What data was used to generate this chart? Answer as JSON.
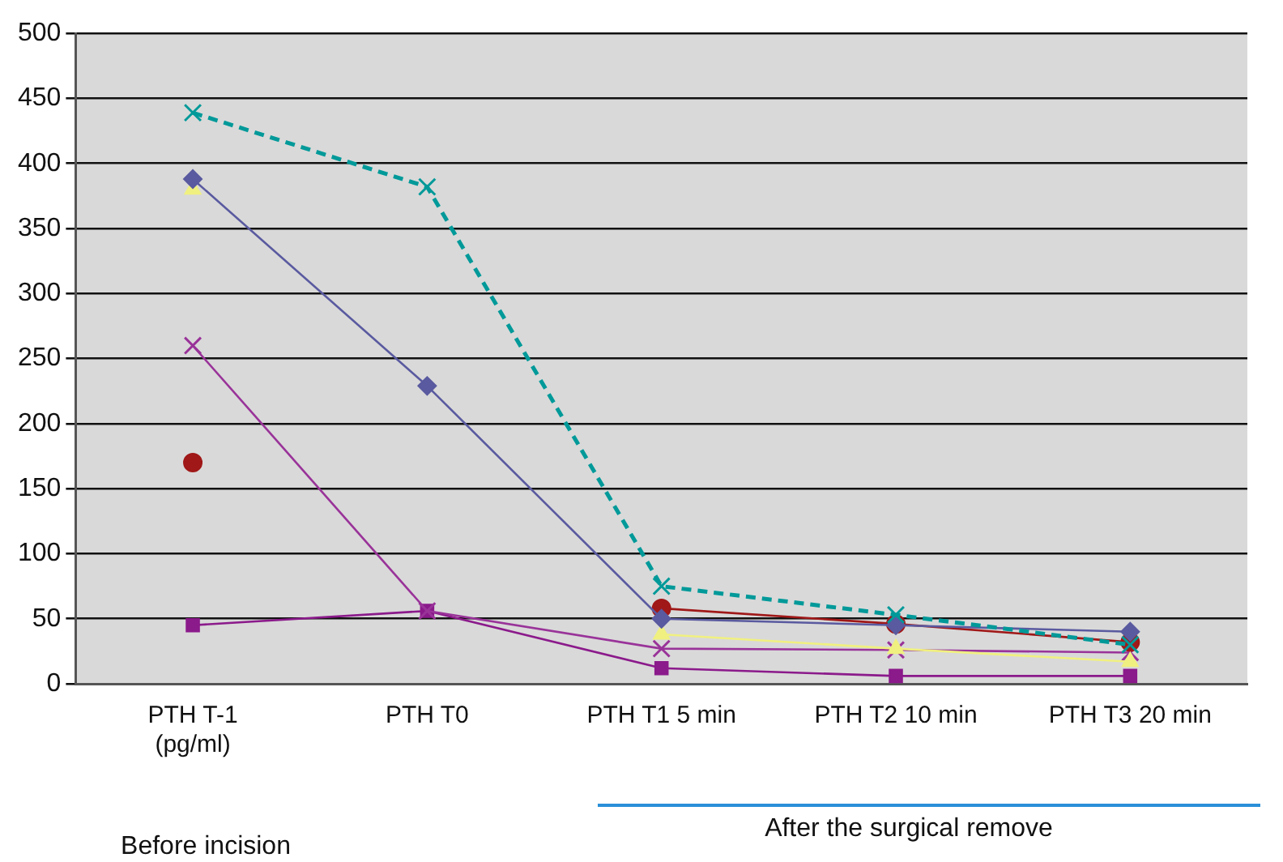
{
  "chart_data": {
    "type": "line",
    "categories": [
      "PTH T-1\n(pg/ml)",
      "PTH T0",
      "PTH T1 5 min",
      "PTH T2 10 min",
      "PTH T3 20 min"
    ],
    "series": [
      {
        "color": "#009999",
        "marker": "cross",
        "line_style": "dashed",
        "values": [
          439,
          382,
          75,
          53,
          30
        ]
      },
      {
        "color": "#5a5aa0",
        "marker": "diamond",
        "values": [
          388,
          229,
          50,
          45,
          40
        ]
      },
      {
        "color": "#f0f080",
        "marker": "triangle",
        "values": [
          380,
          null,
          38,
          27,
          17
        ]
      },
      {
        "color": "#a01818",
        "marker": "circle",
        "values": [
          170,
          null,
          58,
          46,
          32
        ]
      },
      {
        "color": "#993399",
        "marker": "cross",
        "values": [
          260,
          56,
          27,
          26,
          24
        ]
      },
      {
        "color": "#8b1a8b",
        "marker": "square",
        "values": [
          45,
          56,
          12,
          6,
          6
        ]
      }
    ],
    "ylim": [
      0,
      500
    ],
    "yticks": [
      0,
      50,
      100,
      150,
      200,
      250,
      300,
      350,
      400,
      450,
      500
    ],
    "grid": "y",
    "legend": false,
    "annotations": [
      "Before incision",
      "After the surgical remove"
    ]
  }
}
